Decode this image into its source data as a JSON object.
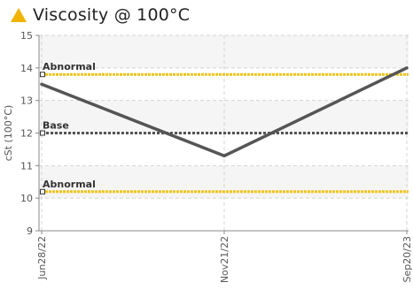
{
  "widget": {
    "icon": "warning-triangle-icon",
    "title": "Viscosity @ 100°C",
    "accent_color": "#f0b400"
  },
  "chart_data": {
    "type": "line",
    "title": "Viscosity @ 100°C",
    "ylabel": "cSt (100°C)",
    "xlabel": "",
    "ylim": [
      9,
      15
    ],
    "y_ticks": [
      9,
      10,
      11,
      12,
      13,
      14,
      15
    ],
    "categories": [
      "Jun28/22",
      "Nov21/22",
      "Sep20/23"
    ],
    "series": [
      {
        "values": [
          13.5,
          11.3,
          14.0
        ],
        "color": "#555555"
      }
    ],
    "reference_lines": [
      {
        "label": "Abnormal",
        "value": 13.8,
        "color": "#f0c419"
      },
      {
        "label": "Base",
        "value": 12.0,
        "color": "#555555"
      },
      {
        "label": "Abnormal",
        "value": 10.2,
        "color": "#f0c419"
      }
    ],
    "grid": true,
    "legend": "none"
  }
}
